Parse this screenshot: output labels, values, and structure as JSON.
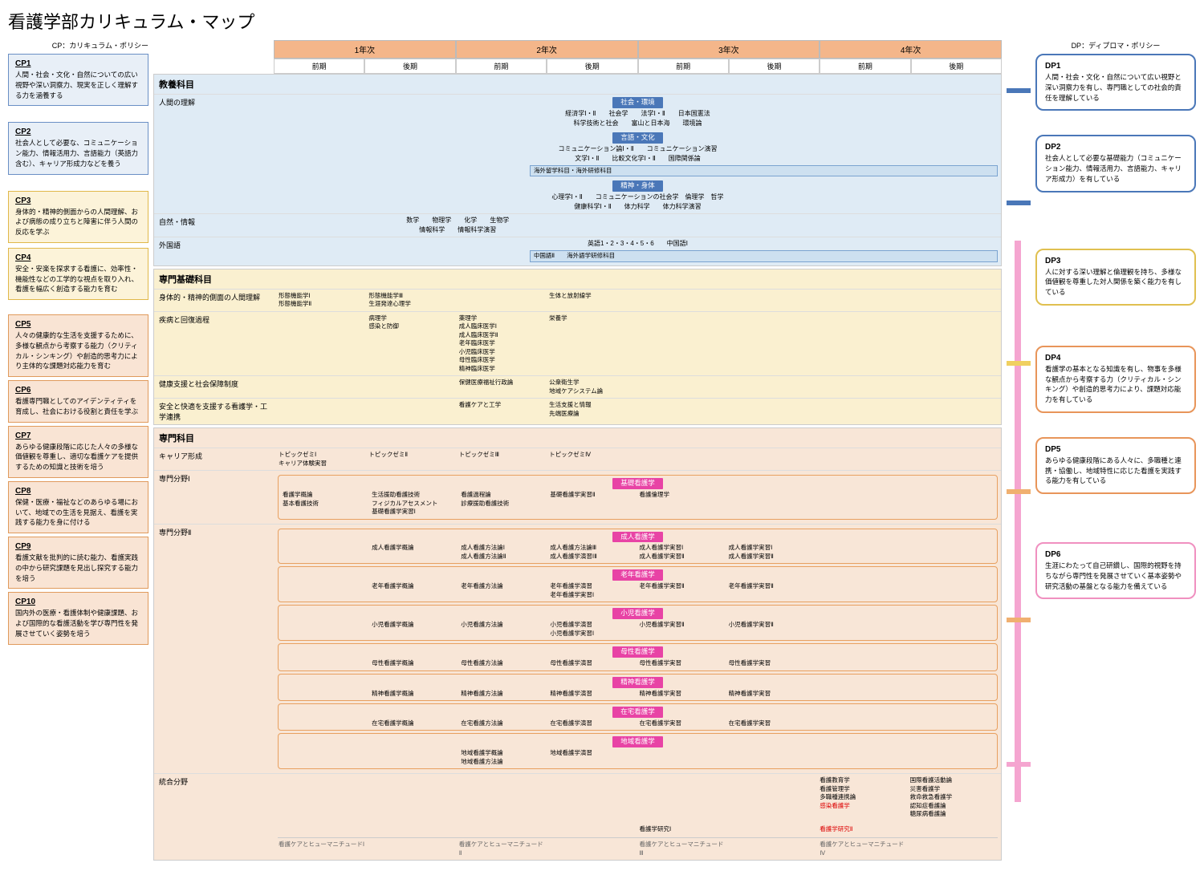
{
  "title": "看護学部カリキュラム・マップ",
  "cp_title": "CP：カリキュラム・ポリシー",
  "dp_title": "DP：ディプロマ・ポリシー",
  "years": [
    "1年次",
    "2年次",
    "3年次",
    "4年次"
  ],
  "terms": [
    "前期",
    "後期",
    "前期",
    "後期",
    "前期",
    "後期",
    "前期",
    "後期"
  ],
  "cp": [
    {
      "id": "CP1",
      "desc": "人間・社会・文化・自然についての広い視野や深い洞察力、現実を正しく理解する力を涵養する",
      "cls": "cp-blue",
      "gap": 20
    },
    {
      "id": "CP2",
      "desc": "社会人として必要な、コミュニケーション能力、情報活用力、言語能力（英語力含む）、キャリア形成力などを養う",
      "cls": "cp-blue",
      "gap": 20
    },
    {
      "id": "CP3",
      "desc": "身体的・精神的側面からの人間理解、および病態の成り立ちと障害に伴う人間の反応を学ぶ",
      "cls": "cp-yellow",
      "gap": 6
    },
    {
      "id": "CP4",
      "desc": "安全・安楽を探求する看護に、効率性・機能性などの工学的な視点を取り入れ、看護を幅広く創造する能力を育む",
      "cls": "cp-yellow",
      "gap": 18
    },
    {
      "id": "CP5",
      "desc": "人々の健康的な生活を支援するために、多様な観点から考察する能力（クリティカル・シンキング）や創造的思考力により主体的な課題対応能力を育む",
      "cls": "cp-orange",
      "gap": 4
    },
    {
      "id": "CP6",
      "desc": "看護専門職としてのアイデンティティを育成し、社会における役割と責任を学ぶ",
      "cls": "cp-orange",
      "gap": 4
    },
    {
      "id": "CP7",
      "desc": "あらゆる健康段階に応じた人々の多様な価値観を尊重し、適切な看護ケアを提供するための知識と技術を培う",
      "cls": "cp-orange",
      "gap": 4
    },
    {
      "id": "CP8",
      "desc": "保健・医療・福祉などのあらゆる場において、地域での生活を見据え、看護を実践する能力を身に付ける",
      "cls": "cp-orange",
      "gap": 4
    },
    {
      "id": "CP9",
      "desc": "看護文献を批判的に読む能力、看護実践の中から研究課題を見出し探究する能力を培う",
      "cls": "cp-orange",
      "gap": 4
    },
    {
      "id": "CP10",
      "desc": "国内外の医療・看護体制や健康課題、および国際的な看護活動を学び専門性を発展させていく姿勢を培う",
      "cls": "cp-orange",
      "gap": 4
    }
  ],
  "dp": [
    {
      "id": "DP1",
      "desc": "人間・社会・文化・自然について広い視野と深い洞察力を有し、専門職としての社会的責任を理解している",
      "cls": "dp-blue",
      "gap": 30
    },
    {
      "id": "DP2",
      "desc": "社会人として必要な基礎能力（コミュニケーション能力、情報活用力、言語能力、キャリア形成力）を有している",
      "cls": "dp-blue",
      "gap": 70
    },
    {
      "id": "DP3",
      "desc": "人に対する深い理解と倫理観を持ち、多様な価値観を尊重した対人関係を築く能力を有している",
      "cls": "dp-yellow",
      "gap": 50
    },
    {
      "id": "DP4",
      "desc": "看護学の基本となる知識を有し、物事を多様な観点から考察する力（クリティカル・シンキング）や創造的思考力により、課題対応能力を有している",
      "cls": "dp-orange",
      "gap": 30
    },
    {
      "id": "DP5",
      "desc": "あらゆる健康段階にある人々に、多職種と連携・協働し、地域特性に応じた看護を実践する能力を有している",
      "cls": "dp-orange",
      "gap": 60
    },
    {
      "id": "DP6",
      "desc": "生涯にわたって自己研鑽し、国際的視野を持ちながら専門性を発展させていく基本姿勢や研究活動の基盤となる能力を備えている",
      "cls": "dp-pink",
      "gap": 12
    }
  ],
  "sec1": {
    "title": "教養科目",
    "r1_label": "人間の理解",
    "tag1": "社会・環境",
    "c1": "経済学Ⅰ・Ⅱ　　社会学　　法学Ⅰ・Ⅱ　　日本国憲法",
    "c2": "科学技術と社会　　富山と日本海　　環境論",
    "tag2": "言語・文化",
    "c3": "コミュニケーション論Ⅰ・Ⅱ　　コミュニケーション演習",
    "c4": "文学Ⅰ・Ⅱ　　比較文化学Ⅰ・Ⅱ　　国際関係論",
    "bar1": "海外留学科目・海外研修科目",
    "tag3": "精神・身体",
    "c5": "心理学Ⅰ・Ⅱ　　コミュニケーションの社会学　倫理学　哲学",
    "c6": "健康科学Ⅰ・Ⅱ　　体力科学　　体力科学演習",
    "r2_label": "自然・情報",
    "c7": "数学　　物理学　　化学　　生物学",
    "c8": "情報科学　　情報科学演習",
    "r3_label": "外国語",
    "c9": "英語1・2・3・4・5・6　　中国語Ⅰ",
    "bar2": "中国語Ⅱ　　海外語学研修科目"
  },
  "sec2": {
    "title": "専門基礎科目",
    "r1_label": "身体的・精神的側面の人間理解",
    "g1": [
      "形態機能学Ⅰ<br>形態機能学Ⅱ",
      "形態機能学Ⅲ<br>生涯発達心理学",
      "",
      "生体と放射線学",
      "",
      "",
      "",
      ""
    ],
    "r2_label": "疾病と回復過程",
    "g2": [
      "",
      "病理学<br>感染と防御",
      "薬理学<br>成人臨床医学Ⅰ<br>成人臨床医学Ⅱ<br>老年臨床医学<br>小児臨床医学<br>母性臨床医学<br>精神臨床医学",
      "栄養学",
      "",
      "",
      "",
      ""
    ],
    "r3_label": "健康支援と社会保障制度",
    "g3": [
      "",
      "",
      "保健医療福祉行政論",
      "公衆衛生学<br>地域ケアシステム論",
      "",
      "",
      "",
      ""
    ],
    "r4_label": "安全と快適を支援する看護学・工学連携",
    "g4": [
      "",
      "",
      "看護ケアと工学",
      "生活支援と情報<br>先端医療論",
      "",
      "",
      "",
      ""
    ]
  },
  "sec3": {
    "title": "専門科目",
    "r1_label": "キャリア形成",
    "g1": [
      "トピックゼミⅠ<br>キャリア体験実習",
      "トピックゼミⅡ",
      "トピックゼミⅢ",
      "トピックゼミⅣ",
      "",
      "",
      "",
      ""
    ],
    "r2_label": "専門分野Ⅰ",
    "tag_kiso": "基礎看護学",
    "g2": [
      "看護学概論<br>基本看護技術",
      "生活援助看護技術<br>フィジカルアセスメント<br>基礎看護学実習Ⅰ",
      "看護過程論<br>診療援助看護技術",
      "基礎看護学実習Ⅱ",
      "看護倫理学",
      "",
      "",
      ""
    ],
    "r3_label": "専門分野Ⅱ",
    "areas": [
      {
        "tag": "成人看護学",
        "g": [
          "",
          "成人看護学概論",
          "成人看護方法論Ⅰ<br>成人看護方法論Ⅱ",
          "成人看護方法論Ⅲ<br>成人看護学演習ⅠⅡ",
          "成人看護学実習Ⅰ<br>成人看護学実習Ⅱ",
          "成人看護学実習Ⅰ<br>成人看護学実習Ⅱ",
          "",
          ""
        ]
      },
      {
        "tag": "老年看護学",
        "g": [
          "",
          "老年看護学概論",
          "老年看護方法論",
          "老年看護学演習<br>老年看護学実習Ⅰ",
          "老年看護学実習Ⅱ",
          "老年看護学実習Ⅱ",
          "",
          ""
        ]
      },
      {
        "tag": "小児看護学",
        "g": [
          "",
          "小児看護学概論",
          "小児看護方法論",
          "小児看護学演習<br>小児看護学実習Ⅰ",
          "小児看護学実習Ⅱ",
          "小児看護学実習Ⅱ",
          "",
          ""
        ]
      },
      {
        "tag": "母性看護学",
        "g": [
          "",
          "母性看護学概論",
          "母性看護方法論",
          "母性看護学演習",
          "母性看護学実習",
          "母性看護学実習",
          "",
          ""
        ]
      },
      {
        "tag": "精神看護学",
        "g": [
          "",
          "精神看護学概論",
          "精神看護方法論",
          "精神看護学演習",
          "精神看護学実習",
          "精神看護学実習",
          "",
          ""
        ]
      },
      {
        "tag": "在宅看護学",
        "g": [
          "",
          "在宅看護学概論",
          "在宅看護方法論",
          "在宅看護学演習",
          "在宅看護学実習",
          "在宅看護学実習",
          "",
          ""
        ]
      },
      {
        "tag": "地域看護学",
        "g": [
          "",
          "",
          "地域看護学概論<br>地域看護方法論",
          "地域看護学演習",
          "",
          "",
          "",
          ""
        ]
      }
    ],
    "r4_label": "統合分野",
    "g4a": [
      "",
      "",
      "",
      "",
      "",
      "",
      "看護教育学<br>看護管理学<br>多職種連携論<br><span class='red-text'>感染看護学</span>",
      "国際看護活動論<br>災害看護学<br>救命救急看護学<br>認知症看護論<br>糖尿病看護論"
    ],
    "g4b": [
      "",
      "",
      "",
      "",
      "看護学研究Ⅰ",
      "",
      "<span class='red-text'>看護学研究Ⅱ</span>",
      ""
    ],
    "footer": [
      "看護ケアとヒューマニチュードⅠ",
      "",
      "看護ケアとヒューマニチュードⅡ",
      "",
      "看護ケアとヒューマニチュードⅢ",
      "",
      "看護ケアとヒューマニチュードⅣ",
      ""
    ]
  },
  "colors": {
    "blue": "#4a77b8",
    "lightblue": "#dfebf5",
    "yellow": "#e0c050",
    "lightyellow": "#faf0d0",
    "orange": "#e8955a",
    "lightorange": "#f8e6d7",
    "pink": "#e843a5",
    "lightpink": "#f5a5d0",
    "header_orange": "#f4b68a"
  }
}
